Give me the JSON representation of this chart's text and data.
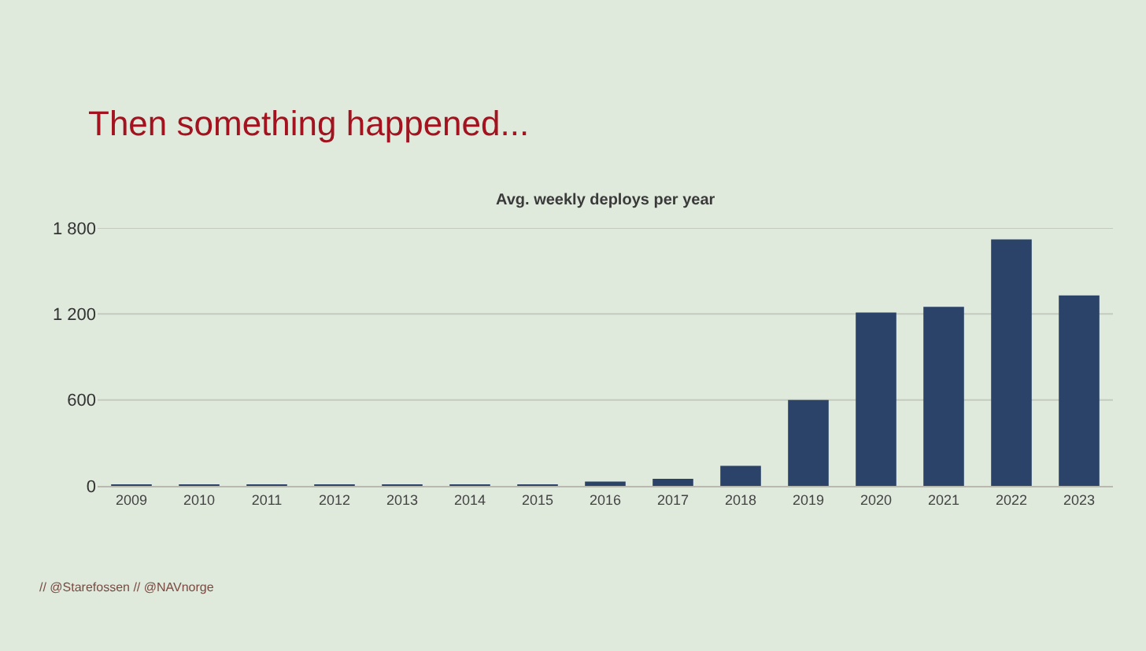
{
  "chart_data": {
    "type": "bar",
    "title": "Then something happened...",
    "subtitle": "Avg. weekly deploys per year",
    "categories": [
      "2009",
      "2010",
      "2011",
      "2012",
      "2013",
      "2014",
      "2015",
      "2016",
      "2017",
      "2018",
      "2019",
      "2020",
      "2021",
      "2022",
      "2023"
    ],
    "values": [
      10,
      10,
      10,
      10,
      10,
      10,
      10,
      30,
      50,
      140,
      600,
      1210,
      1250,
      1720,
      1330
    ],
    "color": "#2b4368",
    "ylim": [
      0,
      1800
    ],
    "yticks": [
      0,
      600,
      {
        "value": 1200,
        "label": "1 200"
      },
      {
        "value": 1800,
        "label": "1 800"
      }
    ],
    "grid": "y",
    "annotations": [
      "// @Starefossen // @NAVnorge"
    ]
  }
}
